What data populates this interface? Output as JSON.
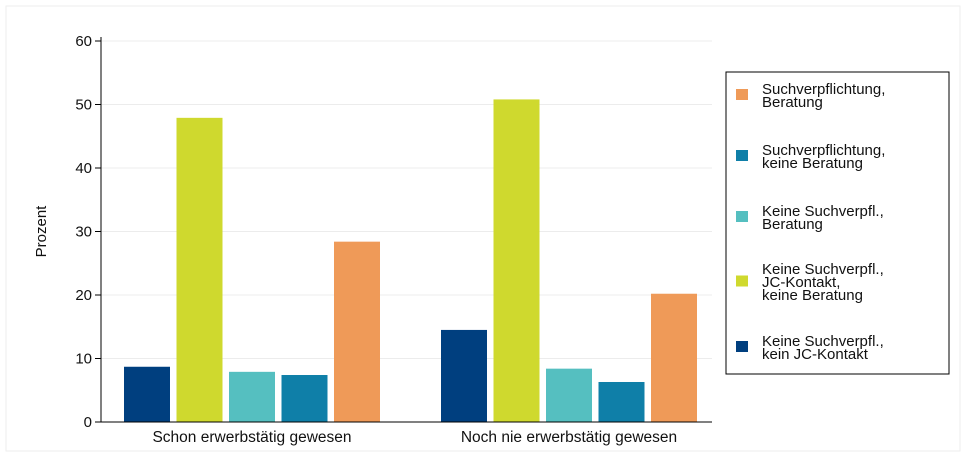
{
  "chart_data": {
    "type": "bar",
    "ylabel": "Prozent",
    "xlabel": "",
    "ylim": [
      0,
      60
    ],
    "yticks": [
      0,
      10,
      20,
      30,
      40,
      50,
      60
    ],
    "grid": true,
    "legend_position": "right",
    "categories": [
      "Schon erwerbstätig gewesen",
      "Noch nie erwerbstätig gewesen"
    ],
    "series": [
      {
        "name": "Keine Suchverpfl., kein JC-Kontakt",
        "color": "#003f7f",
        "values": [
          8.7,
          14.5
        ]
      },
      {
        "name": "Keine Suchverpfl., JC-Kontakt, keine Beratung",
        "color": "#cfd92e",
        "values": [
          47.9,
          50.8
        ]
      },
      {
        "name": "Keine Suchverpfl., Beratung",
        "color": "#55bfc0",
        "values": [
          7.9,
          8.4
        ]
      },
      {
        "name": "Suchverpflichtung, keine Beratung",
        "color": "#0f7fa8",
        "values": [
          7.4,
          6.3
        ]
      },
      {
        "name": "Suchverpflichtung, Beratung",
        "color": "#ef9a58",
        "values": [
          28.4,
          20.2
        ]
      }
    ],
    "legend": [
      {
        "lines": [
          "Suchverpflichtung,",
          "Beratung"
        ],
        "color": "#ef9a58"
      },
      {
        "lines": [
          "Suchverpflichtung,",
          "keine Beratung"
        ],
        "color": "#0f7fa8"
      },
      {
        "lines": [
          "Keine Suchverpfl.,",
          "Beratung"
        ],
        "color": "#55bfc0"
      },
      {
        "lines": [
          "Keine Suchverpfl.,",
          "JC-Kontakt,",
          "keine Beratung"
        ],
        "color": "#cfd92e"
      },
      {
        "lines": [
          "Keine Suchverpfl.,",
          "kein JC-Kontakt"
        ],
        "color": "#003f7f"
      }
    ]
  }
}
